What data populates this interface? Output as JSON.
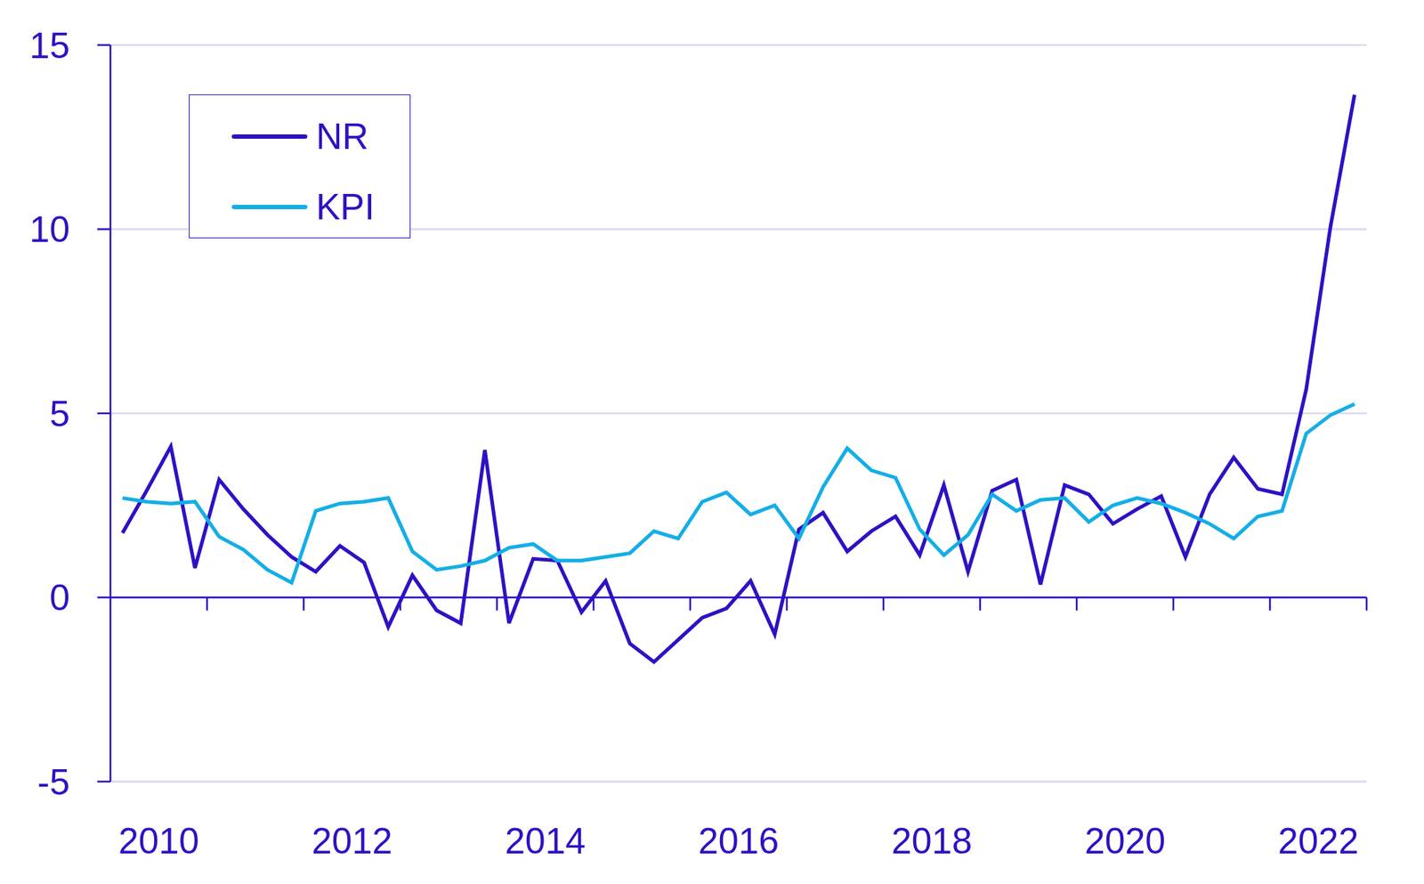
{
  "chart_data": {
    "type": "line",
    "categories": [
      "2010",
      null,
      null,
      null,
      null,
      null,
      null,
      null,
      "2012",
      null,
      null,
      null,
      null,
      null,
      null,
      null,
      "2014",
      null,
      null,
      null,
      null,
      null,
      null,
      null,
      "2016",
      null,
      null,
      null,
      null,
      null,
      null,
      null,
      "2018",
      null,
      null,
      null,
      null,
      null,
      null,
      null,
      "2020",
      null,
      null,
      null,
      null,
      null,
      null,
      null,
      "2022",
      null,
      null,
      null
    ],
    "series": [
      {
        "name": "NR",
        "color": "#2d12c4",
        "values": [
          1.75,
          2.9,
          4.1,
          0.8,
          3.2,
          2.4,
          1.7,
          1.1,
          0.7,
          1.4,
          0.95,
          -0.8,
          0.6,
          -0.35,
          -0.7,
          4.0,
          -0.7,
          1.05,
          1.0,
          -0.4,
          0.45,
          -1.25,
          -1.75,
          -1.15,
          -0.55,
          -0.3,
          0.45,
          -1.0,
          1.85,
          2.3,
          1.25,
          1.8,
          2.2,
          1.15,
          3.05,
          0.7,
          2.9,
          3.2,
          0.35,
          3.05,
          2.8,
          2.0,
          2.4,
          2.75,
          1.1,
          2.8,
          3.8,
          2.95,
          2.8,
          5.65,
          10.05,
          13.65
        ]
      },
      {
        "name": "KPI",
        "color": "#14aee6",
        "values": [
          2.7,
          2.6,
          2.55,
          2.6,
          1.65,
          1.3,
          0.75,
          0.4,
          2.35,
          2.55,
          2.6,
          2.7,
          1.25,
          0.75,
          0.85,
          1.0,
          1.35,
          1.45,
          1.0,
          1.0,
          1.1,
          1.2,
          1.8,
          1.6,
          2.6,
          2.85,
          2.25,
          2.5,
          1.6,
          3.0,
          4.05,
          3.45,
          3.25,
          1.85,
          1.15,
          1.7,
          2.8,
          2.35,
          2.65,
          2.7,
          2.05,
          2.5,
          2.7,
          2.55,
          2.3,
          2.0,
          1.6,
          2.2,
          2.35,
          4.45,
          4.95,
          5.25
        ]
      }
    ],
    "ylim": [
      -5,
      15
    ],
    "yticks": [
      -5,
      0,
      5,
      10,
      15
    ],
    "grid": true,
    "legend": "upper left"
  }
}
